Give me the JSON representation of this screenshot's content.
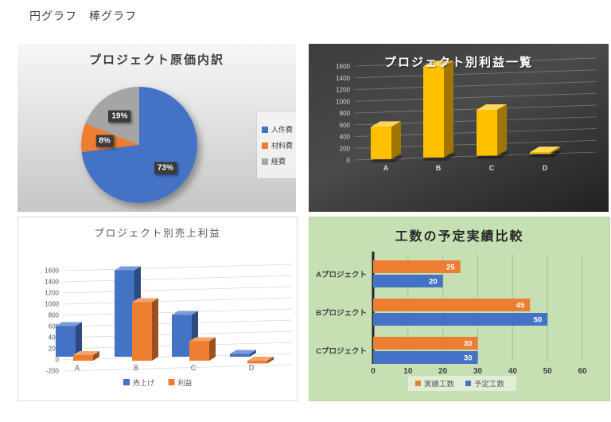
{
  "page": {
    "header_title": "円グラフ　棒グラフ"
  },
  "colors": {
    "blue": "#4472C4",
    "orange": "#ED7D31",
    "gray": "#A5A5A5",
    "gold": "#FFC000",
    "green_panel_bg": "#C6E0B4",
    "dark_panel_bg": "#3F3F3F",
    "silver_panel_bg": "#D9D9D9"
  },
  "chart_data": [
    {
      "type": "pie",
      "title": "プロジェクト原価内訳",
      "labels": [
        "人件費",
        "材料費",
        "経費"
      ],
      "values": [
        73,
        8,
        19
      ],
      "data_labels": [
        "73%",
        "8%",
        "19%"
      ],
      "colors": [
        "#4472C4",
        "#ED7D31",
        "#A5A5A5"
      ],
      "legend_position": "right",
      "background": "silver-gradient"
    },
    {
      "type": "bar",
      "style": "3d",
      "title": "プロジェクト別利益一覧",
      "categories": [
        "A",
        "B",
        "C",
        "D"
      ],
      "values": [
        550,
        1550,
        780,
        30
      ],
      "ylim": [
        0,
        1600
      ],
      "ytick_step": 200,
      "bar_color": "#FFC000",
      "background": "dark",
      "grid": true
    },
    {
      "type": "bar",
      "style": "3d",
      "title": "プロジェクト別売上利益",
      "categories": [
        "A",
        "B",
        "C",
        "D"
      ],
      "series": [
        {
          "name": "売上げ",
          "color": "#4472C4",
          "values": [
            550,
            1550,
            750,
            50
          ]
        },
        {
          "name": "利益",
          "color": "#ED7D31",
          "values": [
            100,
            1050,
            350,
            -50
          ]
        }
      ],
      "ylim": [
        -200,
        1600
      ],
      "ytick_step": 200,
      "legend_position": "bottom",
      "background": "white",
      "grid": true
    },
    {
      "type": "bar",
      "orientation": "horizontal",
      "title": "工数の予定実績比較",
      "categories": [
        "Aプロジェクト",
        "Bプロジェクト",
        "Cプロジェクト"
      ],
      "series": [
        {
          "name": "実績工数",
          "color": "#ED7D31",
          "values": [
            25,
            45,
            30
          ]
        },
        {
          "name": "予定工数",
          "color": "#4472C4",
          "values": [
            20,
            50,
            30
          ]
        }
      ],
      "xlim": [
        0,
        60
      ],
      "xtick_step": 10,
      "xticks": [
        "0",
        "10",
        "20",
        "30",
        "40",
        "50",
        "60"
      ],
      "data_labels_shown": true,
      "legend_position": "bottom",
      "background": "#C6E0B4",
      "grid": true
    }
  ]
}
